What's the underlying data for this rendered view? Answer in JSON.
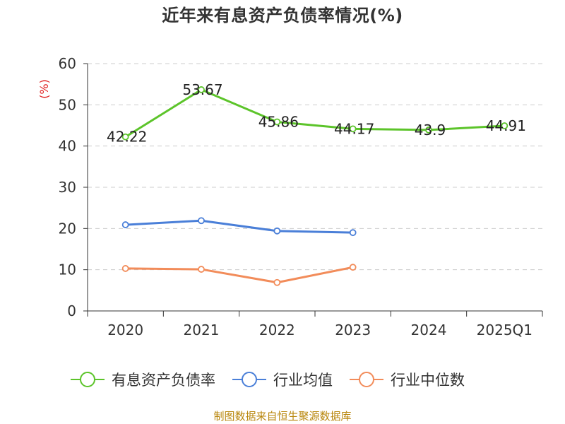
{
  "chart_data": {
    "type": "line",
    "title": "近年来有息资产负债率情况(%)",
    "ylabel": "(%)",
    "categories": [
      "2020",
      "2021",
      "2022",
      "2023",
      "2024",
      "2025Q1"
    ],
    "ylim": [
      0,
      60
    ],
    "yticks": [
      "0",
      "10",
      "20",
      "30",
      "40",
      "50",
      "60"
    ],
    "grid": true,
    "legend_position": "bottom",
    "series": [
      {
        "name": "有息资产负债率",
        "color": "#5cc42a",
        "values": [
          42.22,
          53.67,
          45.86,
          44.17,
          43.9,
          44.91
        ],
        "labels": [
          "42.22",
          "53.67",
          "45.86",
          "44.17",
          "43.9",
          "44.91"
        ]
      },
      {
        "name": "行业均值",
        "color": "#4a7fd8",
        "values": [
          20.9,
          21.9,
          19.4,
          19.0,
          null,
          null
        ]
      },
      {
        "name": "行业中位数",
        "color": "#f28c5a",
        "values": [
          10.3,
          10.1,
          6.9,
          10.6,
          null,
          null
        ]
      }
    ]
  },
  "source": "制图数据来自恒生聚源数据库",
  "colors": {
    "axis": "#333333",
    "grid": "#cccccc",
    "ylabel": "#e02020",
    "source": "#b8860b"
  }
}
